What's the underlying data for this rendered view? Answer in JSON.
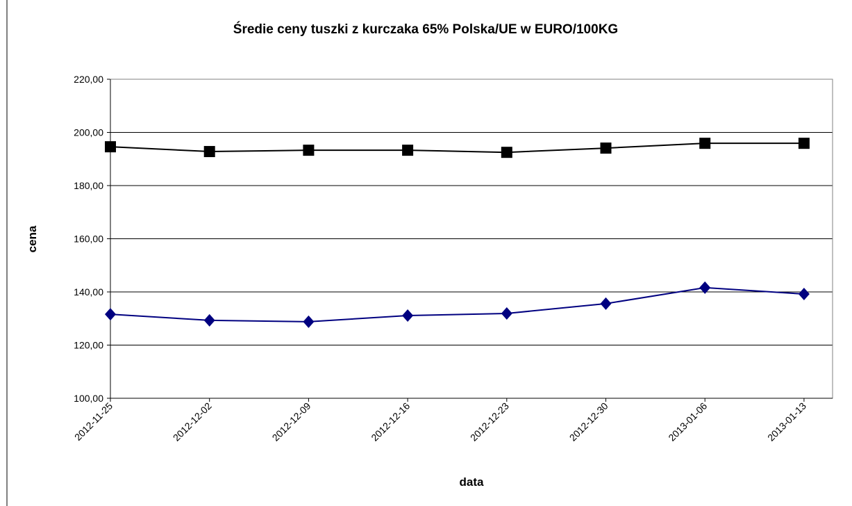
{
  "chart_data": {
    "type": "line",
    "title": "Średie ceny tuszki z kurczaka 65% Polska/UE w EURO/100KG",
    "xlabel": "data",
    "ylabel": "cena",
    "categories": [
      "2012-11-25",
      "2012-12-02",
      "2012-12-09",
      "2012-12-16",
      "2012-12-23",
      "2012-12-30",
      "2013-01-06",
      "2013-01-13"
    ],
    "series": [
      {
        "color": "#000000",
        "marker": "square",
        "values": [
          194.6,
          192.8,
          193.3,
          193.3,
          192.5,
          194.1,
          195.9,
          195.9
        ]
      },
      {
        "color": "#000080",
        "marker": "diamond",
        "values": [
          131.6,
          129.3,
          128.8,
          131.1,
          131.9,
          135.6,
          141.6,
          139.2
        ]
      }
    ],
    "ylim": [
      100,
      220
    ],
    "yticks": [
      {
        "value": 100,
        "label": "100,00"
      },
      {
        "value": 120,
        "label": "120,00"
      },
      {
        "value": 140,
        "label": "140,00"
      },
      {
        "value": 160,
        "label": "160,00"
      },
      {
        "value": 180,
        "label": "180,00"
      },
      {
        "value": 200,
        "label": "200,00"
      },
      {
        "value": 220,
        "label": "220,00"
      }
    ],
    "grid": true
  }
}
